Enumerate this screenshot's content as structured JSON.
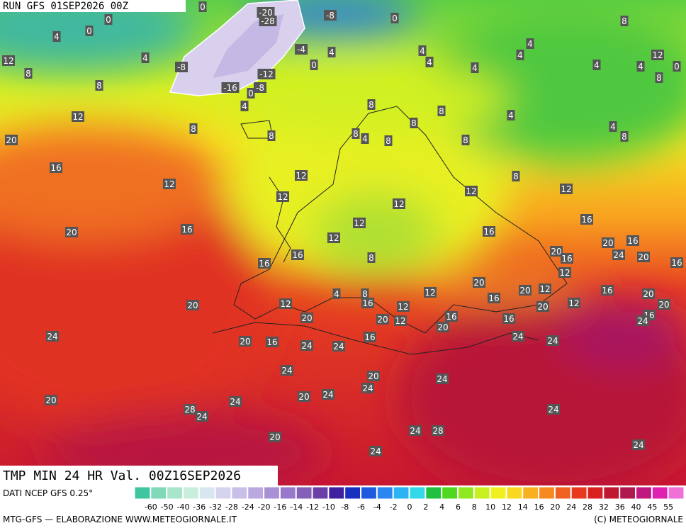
{
  "header": {
    "run": "RUN GFS 01SEP2026 00Z"
  },
  "title": "TMP MIN 24 HR Val. 00Z16SEP2026",
  "footer": {
    "source": "DATI NCEP GFS 0.25°",
    "credit": "MTG-GFS — ELABORAZIONE WWW.METEOGIORNALE.IT",
    "copyright": "(C) METEOGIORNALE"
  },
  "colorbar": {
    "labels": [
      -60,
      -50,
      -40,
      -36,
      -32,
      -28,
      -24,
      -20,
      -16,
      -14,
      -12,
      -10,
      -8,
      -6,
      -4,
      -2,
      0,
      2,
      4,
      6,
      8,
      10,
      12,
      14,
      16,
      20,
      24,
      28,
      32,
      36,
      40,
      45,
      55
    ],
    "colors": [
      "#3fc6a0",
      "#7fd8b8",
      "#a8e6cc",
      "#c8efdc",
      "#d8e6f0",
      "#d4d4ee",
      "#c8c0e8",
      "#bca8e0",
      "#a890d4",
      "#9878c8",
      "#8460b8",
      "#6a40a8",
      "#4020a0",
      "#1830c0",
      "#1e5ae0",
      "#2a86f0",
      "#2ab4f4",
      "#30d8e8",
      "#20c040",
      "#50d820",
      "#90e820",
      "#c8f020",
      "#f0f020",
      "#f8d820",
      "#f8b020",
      "#f88820",
      "#f06020",
      "#e83820",
      "#d82020",
      "#c01830",
      "#b01850",
      "#c01880",
      "#e020b0",
      "#f070d8"
    ]
  },
  "map_labels": [
    0,
    0,
    -20,
    -28,
    -8,
    0,
    0,
    4,
    4,
    -8,
    -4,
    4,
    0,
    4,
    4,
    4,
    4,
    4,
    4,
    8,
    12,
    8,
    4,
    0,
    12,
    8,
    8,
    -12,
    -16,
    0,
    -8,
    4,
    8,
    8,
    4,
    12,
    8,
    8,
    8,
    8,
    4,
    8,
    8,
    4,
    8,
    20,
    16,
    12,
    12,
    8,
    12,
    12,
    12,
    12,
    12,
    20,
    16,
    16,
    12,
    16,
    16,
    8,
    16,
    20,
    16,
    20,
    16,
    24,
    20,
    16,
    12,
    20,
    20,
    12,
    16,
    20,
    12,
    4,
    8,
    16,
    20,
    12,
    16,
    12,
    20,
    12,
    20,
    20,
    20,
    12,
    16,
    16,
    16,
    24,
    20,
    24,
    16,
    24,
    24,
    20,
    16,
    24,
    24,
    24,
    20,
    24,
    24,
    20,
    24,
    20,
    24,
    28,
    24,
    24,
    24,
    28,
    20,
    24,
    24
  ]
}
